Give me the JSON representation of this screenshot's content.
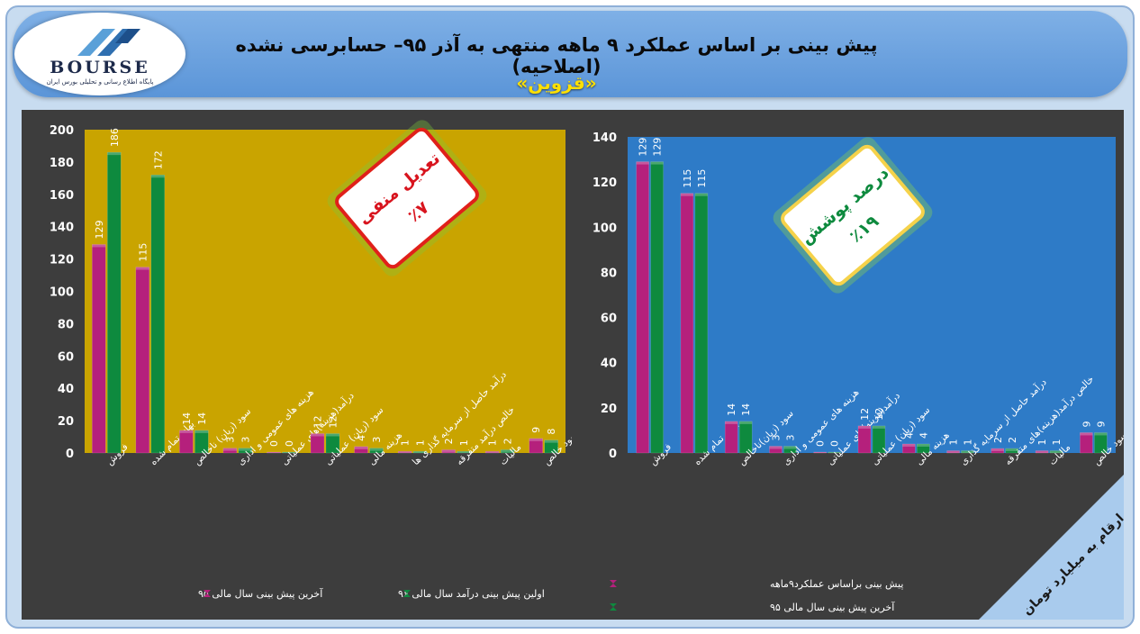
{
  "header": {
    "title": "پیش بینی بر اساس عملکرد ۹ ماهه منتهی به آذر ۹۵– حسابرسی نشده (اصلاحیه)",
    "subtitle": "«قزوین»"
  },
  "logo": {
    "brand": "BOURSE",
    "tagline": "پایگاه اطلاع رسانی و تحلیلی بورس ایران"
  },
  "colors": {
    "magenta": "#b5207c",
    "green": "#0e8a3e",
    "left_plot_bg": "#c9a400",
    "right_plot_bg": "#2e7bc7",
    "panel_bg": "#3d3d3d"
  },
  "chart_data": [
    {
      "type": "bar",
      "position": "left",
      "categories": [
        "فروش",
        "بهای تمام شده",
        "سود (زیان) ناخالص",
        "هزینه های عمومی و اداری",
        "درآمد(هزینه)های عملیاتی",
        "سود (زیان) عملیاتی",
        "هزینه مالی",
        "درآمد حاصل از سرمایه گذاری ها",
        "خالص درآمد متفرقه",
        "مالیات",
        "سود خالص"
      ],
      "series": [
        {
          "name": "آخرین پیش بینی سال مالی ۹۵",
          "color": "#b5207c",
          "values": [
            129,
            115,
            14,
            3,
            0,
            12,
            4,
            1,
            2,
            1,
            9
          ]
        },
        {
          "name": "اولین پیش بینی درآمد سال مالی ۹۶",
          "color": "#0e8a3e",
          "values": [
            186,
            172,
            14,
            3,
            0,
            12,
            3,
            1,
            1,
            2,
            8
          ]
        }
      ],
      "ylim": [
        0,
        200
      ],
      "yticks": [
        0,
        20,
        40,
        60,
        80,
        100,
        120,
        140,
        160,
        180,
        200
      ],
      "legend": "bottom",
      "badge": {
        "title": "تعدیل منفی",
        "value": "٪۷"
      }
    },
    {
      "type": "bar",
      "position": "right",
      "categories": [
        "فروش",
        "بهای تمام شده",
        "سود (زیان)ناخالص",
        "هزینه های عمومی و اداری",
        "درآمد(هزینه)های عملیاتی",
        "سود (زیان) عملیاتی",
        "هزینه مالی",
        "درآمد حاصل از سرمایه گذاری",
        "خالص درآمد(هزینه)های متفرقه",
        "مالیات",
        "سود خالص"
      ],
      "series": [
        {
          "name": "پیش بینی براساس عملکرد۹ماهه",
          "color": "#b5207c",
          "values": [
            129,
            115,
            14,
            3,
            0,
            12,
            4,
            1,
            2,
            1,
            9
          ]
        },
        {
          "name": "آخرین پیش بینی سال مالی ۹۵",
          "color": "#0e8a3e",
          "values": [
            129,
            115,
            14,
            3,
            0,
            12,
            4,
            1,
            2,
            1,
            9
          ]
        }
      ],
      "ylim": [
        0,
        140
      ],
      "yticks": [
        0,
        20,
        40,
        60,
        80,
        100,
        120,
        140
      ],
      "legend": "bottom",
      "badge": {
        "title": "درصد پوشش",
        "value": "٪۱۹"
      },
      "corner_note": "ارقام به میلیارد تومان"
    }
  ]
}
